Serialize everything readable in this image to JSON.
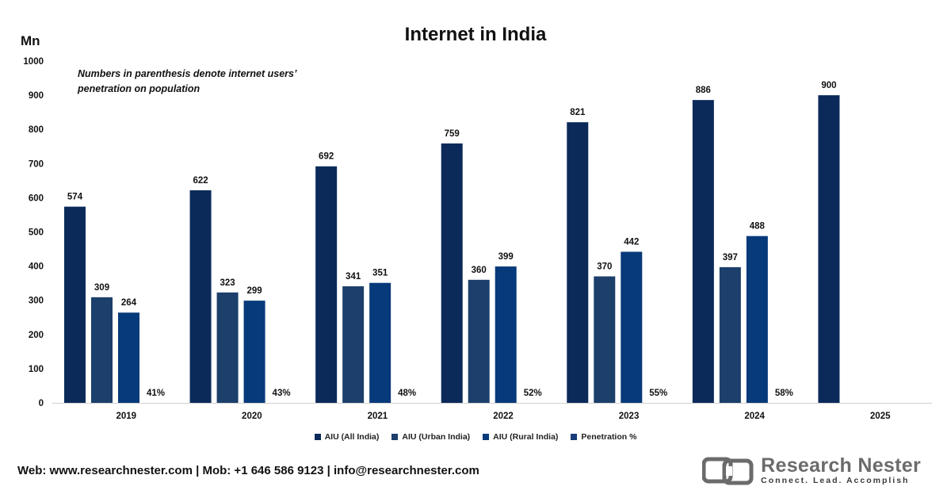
{
  "chart_data": {
    "type": "bar",
    "title": "Internet in India",
    "ylabel": "Mn",
    "note": [
      "Numbers in parenthesis denote internet users’",
      "penetration on population"
    ],
    "ylim": [
      0,
      1000
    ],
    "yticks": [
      0,
      100,
      200,
      300,
      400,
      500,
      600,
      700,
      800,
      900,
      1000
    ],
    "categories": [
      "2019",
      "2020",
      "2021",
      "2022",
      "2023",
      "2024",
      "2025"
    ],
    "series": [
      {
        "name": "AIU (All India)",
        "color": "#0b2a5a",
        "values": [
          574,
          622,
          692,
          759,
          821,
          886,
          900
        ]
      },
      {
        "name": "AIU (Urban India)",
        "color": "#1c3f6b",
        "values": [
          309,
          323,
          341,
          360,
          370,
          397,
          null
        ]
      },
      {
        "name": "AIU (Rural India)",
        "color": "#073a7a",
        "values": [
          264,
          299,
          351,
          399,
          442,
          488,
          null
        ]
      },
      {
        "name": "Penetration %",
        "color": "#173e78",
        "values": [
          "41%",
          "43%",
          "48%",
          "52%",
          "55%",
          "58%",
          null
        ]
      }
    ],
    "legend_position": "bottom",
    "grid": false
  },
  "footer": {
    "contact": "Web: www.researchnester.com | Mob: +1 646 586 9123 | info@researchnester.com"
  },
  "logo": {
    "name": "Research Nester",
    "tagline": "Connect. Lead. Accomplish"
  }
}
